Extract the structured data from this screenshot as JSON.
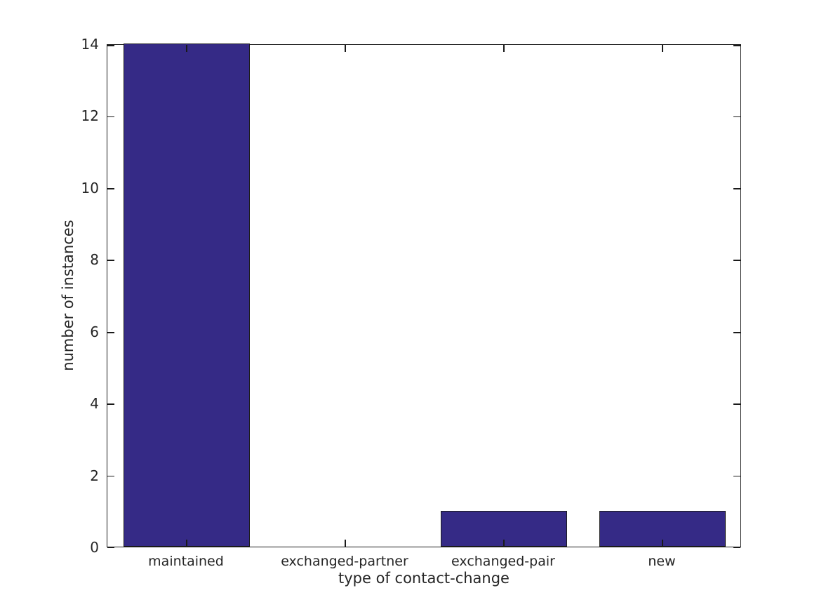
{
  "figure": {
    "background": "#ffffff"
  },
  "chart_data": {
    "type": "bar",
    "categories": [
      "maintained",
      "exchanged-partner",
      "exchanged-pair",
      "new"
    ],
    "values": [
      14,
      0,
      1,
      1
    ],
    "title": "",
    "xlabel": "type of contact-change",
    "ylabel": "number of instances",
    "ylim": [
      0,
      14
    ],
    "yticks": [
      0,
      2,
      4,
      6,
      8,
      10,
      12,
      14
    ],
    "bar_width_fraction": 0.8,
    "bar_color": "#352a86",
    "bar_edge_color": "#1a1a1a",
    "axis_color": "#1a1a1a",
    "text_color": "#262626",
    "grid": false,
    "legend": "none",
    "tick_direction": "in",
    "box": true
  }
}
